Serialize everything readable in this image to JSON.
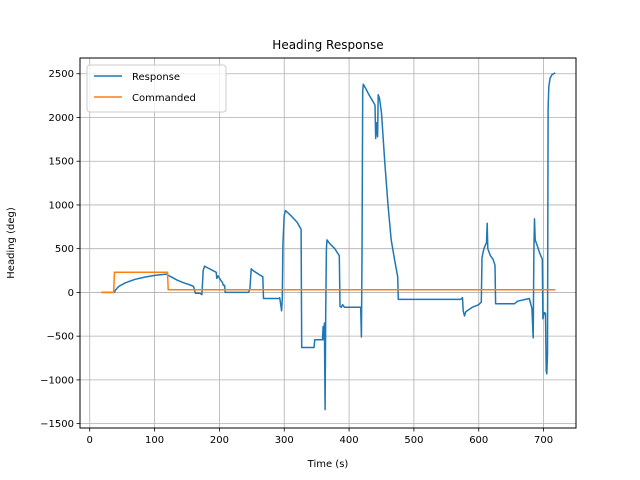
{
  "chart_data": {
    "type": "line",
    "title": "Heading Response",
    "xlabel": "Time (s)",
    "ylabel": "Heading (deg)",
    "xlim": [
      -15,
      750
    ],
    "ylim": [
      -1550,
      2680
    ],
    "xticks": [
      0,
      100,
      200,
      300,
      400,
      500,
      600,
      700
    ],
    "yticks": [
      -1500,
      -1000,
      -500,
      0,
      500,
      1000,
      1500,
      2000,
      2500
    ],
    "grid": true,
    "legend": "top-left",
    "series": [
      {
        "name": "Response",
        "color": "#1f77b4",
        "points": [
          [
            18,
            0
          ],
          [
            38,
            0
          ],
          [
            40,
            30
          ],
          [
            45,
            70
          ],
          [
            55,
            110
          ],
          [
            70,
            150
          ],
          [
            85,
            175
          ],
          [
            100,
            195
          ],
          [
            118,
            210
          ],
          [
            125,
            180
          ],
          [
            135,
            140
          ],
          [
            145,
            110
          ],
          [
            155,
            85
          ],
          [
            160,
            70
          ],
          [
            163,
            -10
          ],
          [
            170,
            -10
          ],
          [
            173,
            -25
          ],
          [
            175,
            250
          ],
          [
            177,
            300
          ],
          [
            182,
            280
          ],
          [
            190,
            250
          ],
          [
            195,
            230
          ],
          [
            196,
            160
          ],
          [
            198,
            190
          ],
          [
            202,
            140
          ],
          [
            205,
            110
          ],
          [
            206,
            80
          ],
          [
            208,
            80
          ],
          [
            209,
            0
          ],
          [
            245,
            0
          ],
          [
            247,
            40
          ],
          [
            249,
            270
          ],
          [
            252,
            250
          ],
          [
            262,
            200
          ],
          [
            267,
            180
          ],
          [
            268,
            -70
          ],
          [
            292,
            -70
          ],
          [
            293,
            -60
          ],
          [
            296,
            -210
          ],
          [
            297,
            -70
          ],
          [
            298,
            540
          ],
          [
            300,
            880
          ],
          [
            302,
            935
          ],
          [
            310,
            880
          ],
          [
            320,
            800
          ],
          [
            326,
            720
          ],
          [
            327,
            -630
          ],
          [
            346,
            -630
          ],
          [
            347,
            -540
          ],
          [
            359,
            -540
          ],
          [
            360,
            -390
          ],
          [
            361,
            -540
          ],
          [
            362,
            -350
          ],
          [
            363,
            -1340
          ],
          [
            364,
            -260
          ],
          [
            365,
            500
          ],
          [
            366,
            600
          ],
          [
            370,
            560
          ],
          [
            378,
            500
          ],
          [
            385,
            420
          ],
          [
            386,
            -160
          ],
          [
            388,
            -170
          ],
          [
            390,
            -140
          ],
          [
            393,
            -170
          ],
          [
            418,
            -170
          ],
          [
            419,
            -510
          ],
          [
            420,
            400
          ],
          [
            421,
            2300
          ],
          [
            422,
            2380
          ],
          [
            425,
            2340
          ],
          [
            430,
            2270
          ],
          [
            437,
            2180
          ],
          [
            440,
            2140
          ],
          [
            441,
            1760
          ],
          [
            442,
            1940
          ],
          [
            444,
            1780
          ],
          [
            445,
            2260
          ],
          [
            447,
            2220
          ],
          [
            450,
            2050
          ],
          [
            455,
            1500
          ],
          [
            460,
            1000
          ],
          [
            465,
            600
          ],
          [
            470,
            380
          ],
          [
            475,
            180
          ],
          [
            476,
            -80
          ],
          [
            572,
            -80
          ],
          [
            575,
            -60
          ],
          [
            576,
            -210
          ],
          [
            578,
            -270
          ],
          [
            580,
            -220
          ],
          [
            590,
            -170
          ],
          [
            600,
            -140
          ],
          [
            604,
            -110
          ],
          [
            605,
            400
          ],
          [
            608,
            500
          ],
          [
            612,
            570
          ],
          [
            613,
            790
          ],
          [
            614,
            500
          ],
          [
            618,
            420
          ],
          [
            622,
            380
          ],
          [
            625,
            310
          ],
          [
            626,
            -130
          ],
          [
            655,
            -130
          ],
          [
            660,
            -100
          ],
          [
            672,
            -80
          ],
          [
            678,
            -70
          ],
          [
            682,
            -180
          ],
          [
            684,
            -520
          ],
          [
            685,
            500
          ],
          [
            686,
            840
          ],
          [
            687,
            600
          ],
          [
            690,
            540
          ],
          [
            694,
            450
          ],
          [
            698,
            380
          ],
          [
            699,
            -300
          ],
          [
            701,
            -230
          ],
          [
            703,
            -240
          ],
          [
            704,
            -900
          ],
          [
            705,
            -930
          ],
          [
            706,
            -700
          ],
          [
            707,
            2100
          ],
          [
            708,
            2350
          ],
          [
            710,
            2450
          ],
          [
            713,
            2490
          ],
          [
            718,
            2510
          ]
        ]
      },
      {
        "name": "Commanded",
        "color": "#ff7f0e",
        "points": [
          [
            18,
            0
          ],
          [
            37,
            0
          ],
          [
            38,
            230
          ],
          [
            120,
            230
          ],
          [
            121,
            30
          ],
          [
            718,
            30
          ]
        ]
      }
    ]
  }
}
